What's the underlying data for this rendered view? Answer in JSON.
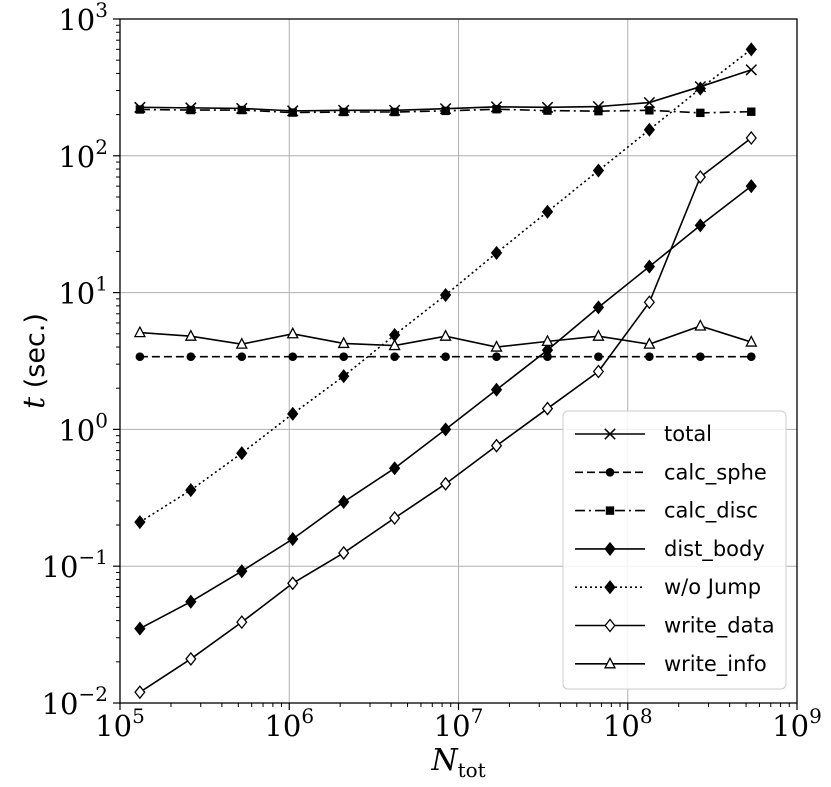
{
  "chart_data": {
    "type": "line",
    "xscale": "log",
    "yscale": "log",
    "xlim": [
      100000,
      1000000000
    ],
    "ylim": [
      0.01,
      1000
    ],
    "grid": true,
    "legend_position": "lower-right",
    "xlabel": {
      "main": "N",
      "sub": "tot"
    },
    "ylabel": {
      "italic": "t",
      "rest": " (sec.)"
    },
    "x_ticks": [
      {
        "value": 100000,
        "base": "10",
        "exp": "5"
      },
      {
        "value": 1000000,
        "base": "10",
        "exp": "6"
      },
      {
        "value": 10000000,
        "base": "10",
        "exp": "7"
      },
      {
        "value": 100000000,
        "base": "10",
        "exp": "8"
      },
      {
        "value": 1000000000,
        "base": "10",
        "exp": "9"
      }
    ],
    "y_ticks": [
      {
        "value": 0.01,
        "base": "10",
        "exp": "−2"
      },
      {
        "value": 0.1,
        "base": "10",
        "exp": "−1"
      },
      {
        "value": 1,
        "base": "10",
        "exp": "0"
      },
      {
        "value": 10,
        "base": "10",
        "exp": "1"
      },
      {
        "value": 100,
        "base": "10",
        "exp": "2"
      },
      {
        "value": 1000,
        "base": "10",
        "exp": "3"
      }
    ],
    "x": [
      131072,
      262144,
      524288,
      1048576,
      2097152,
      4194304,
      8388608,
      16777216,
      33554432,
      67108864,
      134217728,
      268435456,
      536870912
    ],
    "series": [
      {
        "name": "total",
        "marker": "x",
        "dash": "solid",
        "values": [
          226,
          224,
          222,
          213,
          215,
          215,
          221,
          228,
          226,
          229,
          245,
          320,
          425
        ]
      },
      {
        "name": "calc_sphe",
        "marker": "circle",
        "dash": "dashed",
        "values": [
          3.4,
          3.4,
          3.4,
          3.4,
          3.4,
          3.4,
          3.4,
          3.4,
          3.4,
          3.4,
          3.4,
          3.4,
          3.4
        ]
      },
      {
        "name": "calc_disc",
        "marker": "square",
        "dash": "dashdot",
        "values": [
          218,
          216,
          216,
          207,
          209,
          209,
          213,
          219,
          214,
          212,
          215,
          206,
          210
        ]
      },
      {
        "name": "dist_body",
        "marker": "diamond",
        "dash": "solid",
        "values": [
          0.035,
          0.055,
          0.092,
          0.158,
          0.295,
          0.52,
          1.0,
          1.95,
          3.8,
          7.8,
          15.5,
          31,
          60
        ]
      },
      {
        "name": "w/o Jump",
        "marker": "diamond",
        "dash": "dotted",
        "values": [
          0.21,
          0.36,
          0.67,
          1.3,
          2.45,
          4.9,
          9.6,
          19.5,
          39,
          78,
          155,
          310,
          600
        ]
      },
      {
        "name": "write_data",
        "marker": "diamond-open",
        "dash": "solid",
        "values": [
          0.012,
          0.021,
          0.039,
          0.075,
          0.125,
          0.225,
          0.4,
          0.76,
          1.42,
          2.65,
          8.5,
          70,
          135
        ]
      },
      {
        "name": "write_info",
        "marker": "triangle-open",
        "dash": "solid",
        "values": [
          5.1,
          4.8,
          4.2,
          5.0,
          4.25,
          4.1,
          4.8,
          4.0,
          4.4,
          4.8,
          4.2,
          5.7,
          4.35
        ]
      }
    ]
  }
}
